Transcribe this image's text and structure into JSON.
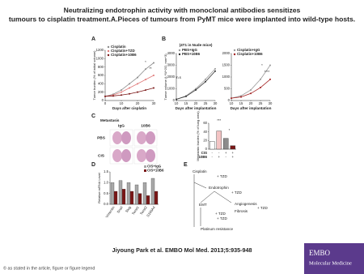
{
  "header": {
    "title": "Neutralizing endotrophin activity with monoclonal antibodies sensitizes tumours to cisplatin treatment.A.Pieces of tumours from PyMT mice were implanted into wild-type hosts."
  },
  "figure": {
    "panels": [
      "A",
      "B",
      "C",
      "D",
      "E"
    ],
    "charts": [
      {
        "type": "line",
        "ylabel": "Tumor burden (% of initial volume)",
        "xlabel": "Days after cisplatin",
        "x": [
          0,
          5,
          10,
          15,
          20,
          25,
          30
        ],
        "xlim": [
          0,
          30
        ],
        "xticks": [
          0,
          10,
          20,
          30
        ],
        "ylim": [
          0,
          1200
        ],
        "yticks": [
          0,
          200,
          400,
          600,
          800,
          1000,
          1200
        ],
        "series": [
          {
            "name": "Cisplatin",
            "color": "#8c8c8c",
            "values": [
              100,
              150,
              250,
              400,
              550,
              750,
              900
            ]
          },
          {
            "name": "Cisplatin+TZD",
            "color": "#e07a7a",
            "values": [
              100,
              130,
              200,
              300,
              400,
              500,
              600
            ]
          },
          {
            "name": "Cisplatin+10B6",
            "color": "#7a1717",
            "values": [
              100,
              110,
              130,
              160,
              200,
              250,
              300
            ]
          }
        ],
        "annotations": [
          "*",
          "**"
        ]
      },
      {
        "type": "line",
        "title": "(4T1 in Nude mice)",
        "ylabel": "Tumor volume (L*W^2/2, mm^3)",
        "xlabel": "Days after implantation",
        "x": [
          10,
          15,
          20,
          25,
          30
        ],
        "xlim": [
          10,
          30
        ],
        "xticks": [
          10,
          15,
          20,
          25,
          30
        ],
        "ylim": [
          0,
          4000
        ],
        "yticks": [
          0,
          1000,
          2000,
          3000,
          4000
        ],
        "series": [
          {
            "name": "PBS+IgG",
            "color": "#9a9a9a",
            "values": [
              100,
              400,
              1000,
              1800,
              2700
            ]
          },
          {
            "name": "PBS+10B6",
            "color": "#333333",
            "values": [
              100,
              350,
              900,
              1600,
              2500
            ]
          }
        ],
        "annotations": [
          "n.s"
        ]
      },
      {
        "type": "line",
        "xlabel": "Days after implantation",
        "x": [
          10,
          15,
          20,
          25,
          30
        ],
        "xlim": [
          10,
          30
        ],
        "xticks": [
          10,
          15,
          20,
          25,
          30
        ],
        "ylim": [
          0,
          2000
        ],
        "yticks": [
          0,
          500,
          1000,
          1500,
          2000
        ],
        "series": [
          {
            "name": "Cisplatin+IgG",
            "color": "#9a9a9a",
            "values": [
              100,
              200,
              450,
              900,
              1500
            ]
          },
          {
            "name": "Cisplatin+10B6",
            "color": "#a32222",
            "values": [
              100,
              150,
              300,
              550,
              900
            ]
          }
        ],
        "annotations": [
          "*",
          "****"
        ]
      },
      {
        "type": "bar",
        "ylabel": "Metastatic burden (% of lung area)",
        "categories": [
          null,
          null,
          null,
          null
        ],
        "values": [
          18,
          42,
          25,
          8
        ],
        "colors": [
          "#ffffff",
          "#f3c4c4",
          "#8c8c8c",
          "#7a1717"
        ],
        "ylim": [
          0,
          60
        ],
        "yticks": [
          0,
          20,
          40,
          60
        ],
        "treatment_rows": [
          {
            "name": "CIS",
            "signs": [
              "-",
              "-",
              "+",
              "+"
            ]
          },
          {
            "name": "10B6",
            "signs": [
              "-",
              "+",
              "-",
              "+"
            ]
          }
        ],
        "annotations": [
          "***",
          "*"
        ]
      },
      {
        "type": "bar",
        "ylabel": "Relative mRNA Level",
        "categories": [
          "Vimentin",
          "Snail",
          "Slug",
          "Twist1",
          "Twist2",
          "S100A4"
        ],
        "ylim": [
          0,
          1.5
        ],
        "yticks": [
          {
            "value": 0,
            "label": "0.0"
          },
          0.5,
          {
            "value": 1,
            "label": "1.0"
          },
          1.5
        ],
        "series": [
          {
            "name": "CIS+IgG",
            "color": "#a8a8a8",
            "values": [
              1.0,
              1.1,
              1.0,
              0.9,
              1.0,
              1.2
            ]
          },
          {
            "name": "CIS+10B6",
            "color": "#7a1717",
            "values": [
              0.6,
              0.7,
              0.6,
              0.5,
              0.4,
              0.6
            ]
          }
        ]
      }
    ],
    "image_panel": {
      "title": "Metastasis",
      "columns": [
        "IgG",
        "10B6"
      ],
      "rows": [
        "PBS",
        "CIS"
      ]
    },
    "diagram": {
      "nodes": [
        "Cisplatin",
        "+ TZD",
        "Endotrophin",
        "+ TZD",
        "EMT",
        "+ TZD",
        "Angiogenesis",
        "Fibrosis",
        "+ TZD",
        "Platinum resistance",
        "+ TZD"
      ]
    }
  },
  "citation": "Jiyoung Park et al. EMBO Mol Med. 2013;5:935-948",
  "footer": "© as stated in the article, figure or figure legend",
  "logo": {
    "line1": "EMBO",
    "line2": "Molecular Medicine"
  }
}
